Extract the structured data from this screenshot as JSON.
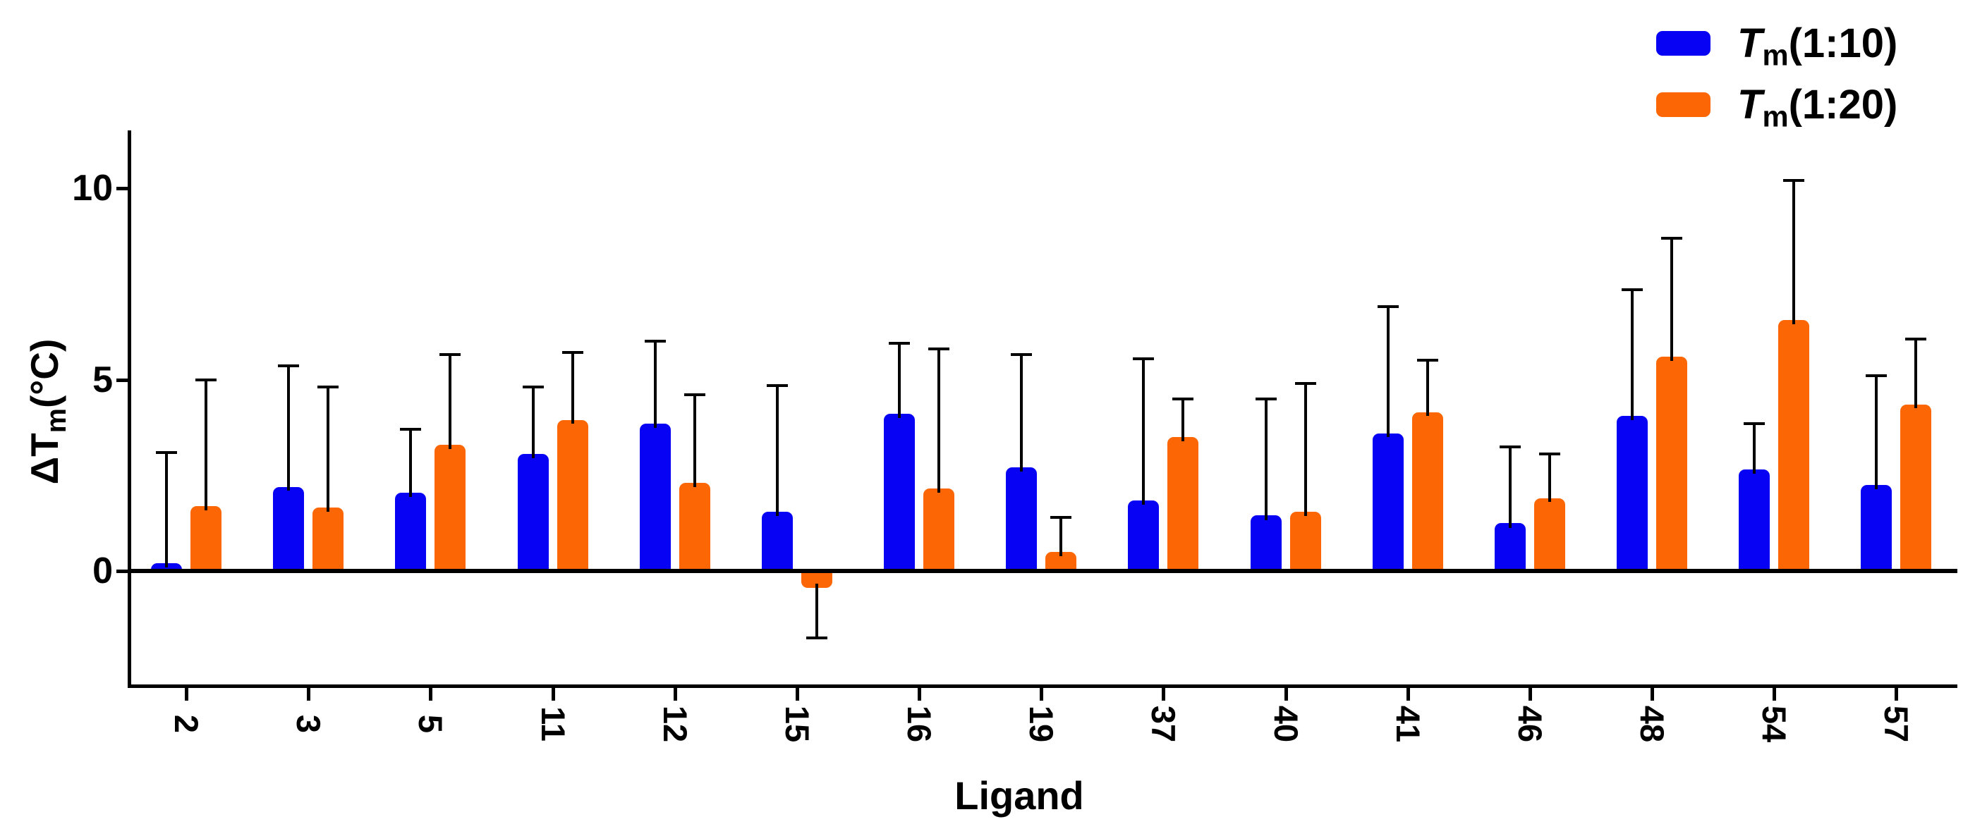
{
  "legend": {
    "items": [
      {
        "label_T": "T",
        "label_sub": "m",
        "label_rest": "(1:10)",
        "swatch_color": "#0802F5"
      },
      {
        "label_T": "T",
        "label_sub": "m",
        "label_rest": "(1:20)",
        "swatch_color": "#FC6605"
      }
    ]
  },
  "y_axis": {
    "title_prefix": "ΔT",
    "title_sub": "m",
    "title_suffix": "(°C)",
    "tick_labels": [
      "10",
      "5",
      "0"
    ],
    "tick_values": [
      10,
      5,
      0
    ]
  },
  "x_axis": {
    "title": "Ligand"
  },
  "chart_data": {
    "type": "bar",
    "title": "",
    "xlabel": "Ligand",
    "ylabel": "ΔTm(°C)",
    "categories": [
      "2",
      "3",
      "5",
      "11",
      "12",
      "15",
      "16",
      "19",
      "37",
      "40",
      "41",
      "46",
      "48",
      "54",
      "57"
    ],
    "series": [
      {
        "name": "Tm(1:10)",
        "color": "#0802F5",
        "values": [
          0.2,
          2.2,
          2.05,
          3.05,
          3.85,
          1.55,
          4.1,
          2.7,
          1.85,
          1.45,
          3.6,
          1.25,
          4.05,
          2.65,
          2.25
        ],
        "errors": [
          2.9,
          3.15,
          1.65,
          1.75,
          2.15,
          3.3,
          1.85,
          2.95,
          3.7,
          3.05,
          3.3,
          2.0,
          3.3,
          1.2,
          2.85
        ]
      },
      {
        "name": "Tm(1:20)",
        "color": "#FC6605",
        "values": [
          1.7,
          1.65,
          3.3,
          3.95,
          2.3,
          -0.45,
          2.15,
          0.5,
          3.5,
          1.55,
          4.15,
          1.9,
          5.6,
          6.55,
          4.35
        ],
        "errors": [
          3.3,
          3.15,
          2.35,
          1.75,
          2.3,
          1.3,
          3.65,
          0.9,
          1.0,
          3.35,
          1.35,
          1.15,
          3.1,
          3.65,
          1.7
        ]
      }
    ],
    "error_bar_style": "one-sided, pointing away from zero, with caps",
    "ylim": [
      -3.0,
      11.5
    ],
    "grid": false,
    "legend_position": "top-right"
  }
}
